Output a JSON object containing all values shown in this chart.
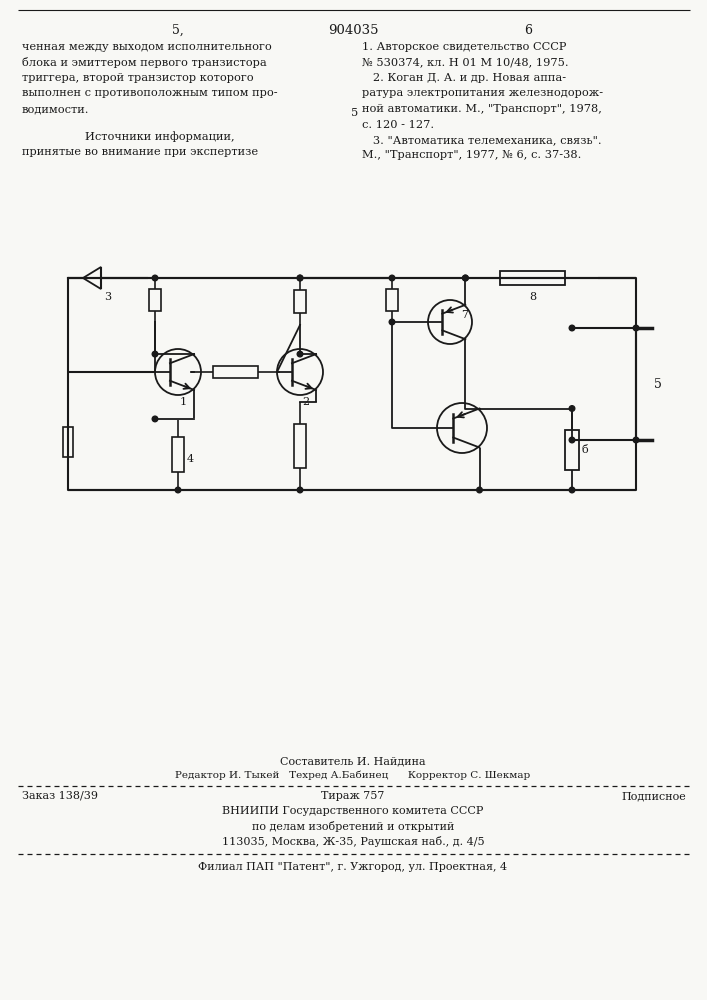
{
  "bg_color": "#f8f8f5",
  "text_color": "#1a1a1a",
  "line_color": "#1a1a1a",
  "header_page_left": "5,",
  "header_patent": "904035",
  "header_page_right": "6",
  "left_col": [
    "ченная между выходом исполнительного",
    "блока и эмиттером первого транзистора",
    "триггера, второй транзистор которого",
    "выполнен с противоположным типом про-",
    "водимости."
  ],
  "sources_title": "Источники информации,",
  "sources_subtitle": "принятые во внимание при экспертизе",
  "ref_5": "5",
  "right_col": [
    "1. Авторское свидетельство СССР",
    "№ 530374, кл. Н 01 М 10/48, 1975.",
    "   2. Коган Д. А. и др. Новая аппа-",
    "ратура электропитания железнодорож-",
    "ной автоматики. М., \"Транспорт\", 1978,",
    "с. 120 - 127.",
    "   3. \"Автоматика телемеханика, связь\".",
    "М., \"Транспорт\", 1977, № 6, с. 37-38."
  ],
  "composer": "Составитель И. Найдина",
  "editor_line": "Редактор И. Тыкей   Техред А.Бабинец      Корректор С. Шекмар",
  "order": "Заказ 138/39",
  "circulation": "Тираж 757",
  "subscription": "Подписное",
  "vniip1": "ВНИИПИ Государственного комитета СССР",
  "vniip2": "по делам изобретений и открытий",
  "vniip3": "113035, Москва, Ж-35, Раушская наб., д. 4/5",
  "branch": "Филиал ПАП \"Патент\", г. Ужгород, ул. Проектная, 4"
}
